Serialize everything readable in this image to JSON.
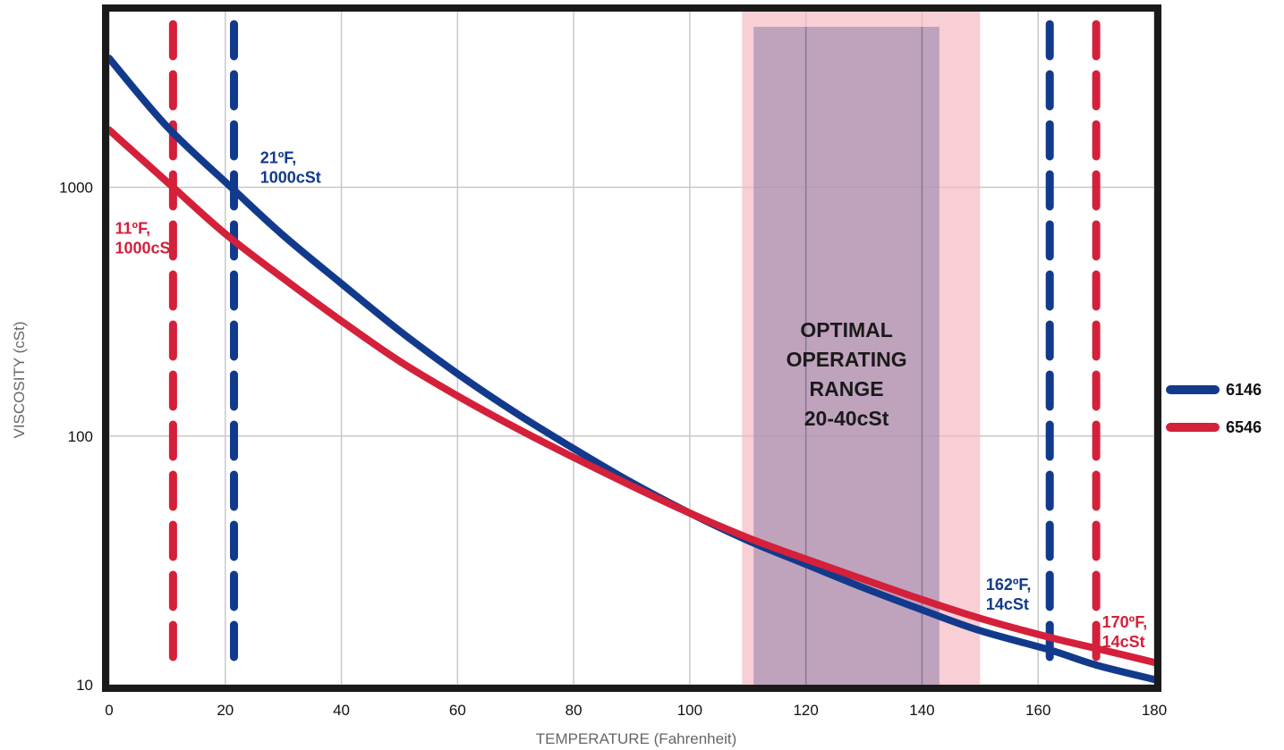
{
  "chart_data": {
    "type": "line",
    "title": "",
    "xlabel": "TEMPERATURE (Fahrenheit)",
    "ylabel": "VISCOSITY (cSt)",
    "xlim": [
      0,
      180
    ],
    "ylim": [
      10,
      5000
    ],
    "yscale": "log",
    "grid": true,
    "x_ticks": [
      "0",
      "20",
      "40",
      "60",
      "80",
      "100",
      "120",
      "140",
      "160",
      "180"
    ],
    "y_ticks": [
      "10",
      "100",
      "1000"
    ],
    "legend_position": "right",
    "series": [
      {
        "name": "6146",
        "color": "#123a8c",
        "x": [
          0,
          10,
          21,
          30,
          40,
          50,
          60,
          70,
          80,
          90,
          100,
          110,
          120,
          130,
          140,
          150,
          162,
          170,
          180
        ],
        "y": [
          3300,
          1750,
          1000,
          640,
          410,
          265,
          178,
          124,
          89,
          65,
          49,
          38,
          30.5,
          24.5,
          20,
          16.5,
          13.8,
          12,
          10.5
        ]
      },
      {
        "name": "6546",
        "color": "#d4203a",
        "x": [
          0,
          11,
          20,
          30,
          40,
          50,
          60,
          70,
          80,
          90,
          100,
          110,
          120,
          130,
          140,
          150,
          162,
          170,
          180
        ],
        "y": [
          1700,
          1000,
          650,
          430,
          290,
          200,
          145,
          108,
          82,
          63,
          49,
          39,
          32,
          26.5,
          22,
          18.5,
          15.5,
          14,
          12.3
        ]
      }
    ],
    "vertical_markers": [
      {
        "x": 11,
        "color": "#d4203a",
        "label_line1": "11ºF,",
        "label_line2": "1000cSt",
        "label_x": 1,
        "label_y": 650
      },
      {
        "x": 21.5,
        "color": "#123a8c",
        "label_line1": "21ºF,",
        "label_line2": "1000cSt",
        "label_x": 26,
        "label_y": 1250
      },
      {
        "x": 162,
        "color": "#123a8c",
        "label_line1": "162ºF,",
        "label_line2": "14cSt",
        "label_x": 151,
        "label_y": 24
      },
      {
        "x": 170,
        "color": "#d4203a",
        "label_line1": "170ºF,",
        "label_line2": "14cSt",
        "label_x": 171,
        "label_y": 17
      }
    ],
    "bands": [
      {
        "name": "outer-range",
        "x0": 109,
        "x1": 150,
        "color": "#f2b6be",
        "opacity": 0.65
      },
      {
        "name": "inner-range",
        "x0": 111,
        "x1": 143,
        "color": "#9a86ad",
        "opacity": 0.6
      }
    ],
    "range_label": [
      "OPTIMAL",
      "OPERATING",
      "RANGE",
      "20-40cSt"
    ],
    "range_label_x": 127,
    "range_label_y": 250
  }
}
